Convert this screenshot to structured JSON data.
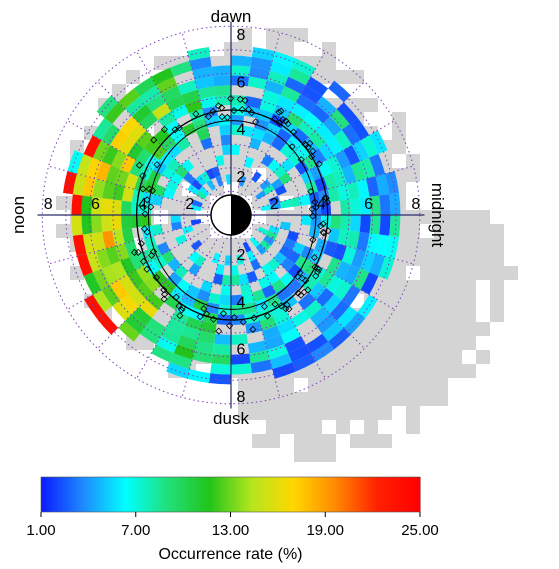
{
  "chart_data": {
    "type": "heatmap",
    "projection": "polar dial plot",
    "direction_labels": {
      "top": "dawn",
      "left": "noon",
      "bottom": "dusk",
      "right": "midnight"
    },
    "radial_tick_labels": [
      "2",
      "4",
      "6",
      "8"
    ],
    "rlim": [
      0,
      8
    ],
    "colorbar": {
      "label": "Occurrence rate (%)",
      "tick_labels": [
        "1.00",
        "7.00",
        "13.00",
        "19.00",
        "25.00"
      ],
      "range": [
        1,
        25
      ],
      "colors": [
        "#0a1eff",
        "#1e8cff",
        "#00ffff",
        "#22e07a",
        "#22c41a",
        "#b4e61e",
        "#ffd700",
        "#ff8a00",
        "#ff2200",
        "#ff0000"
      ]
    },
    "no_data_color": "#d4d4d4",
    "reference_circles": [
      4,
      6,
      8
    ],
    "grid": "dotted purple circles every 1 unit and radial lines",
    "description": "Occurrence rate binned by radial distance and local time; boundary crossing points shown as diamonds near r≈4 with a solid fitted oval"
  }
}
